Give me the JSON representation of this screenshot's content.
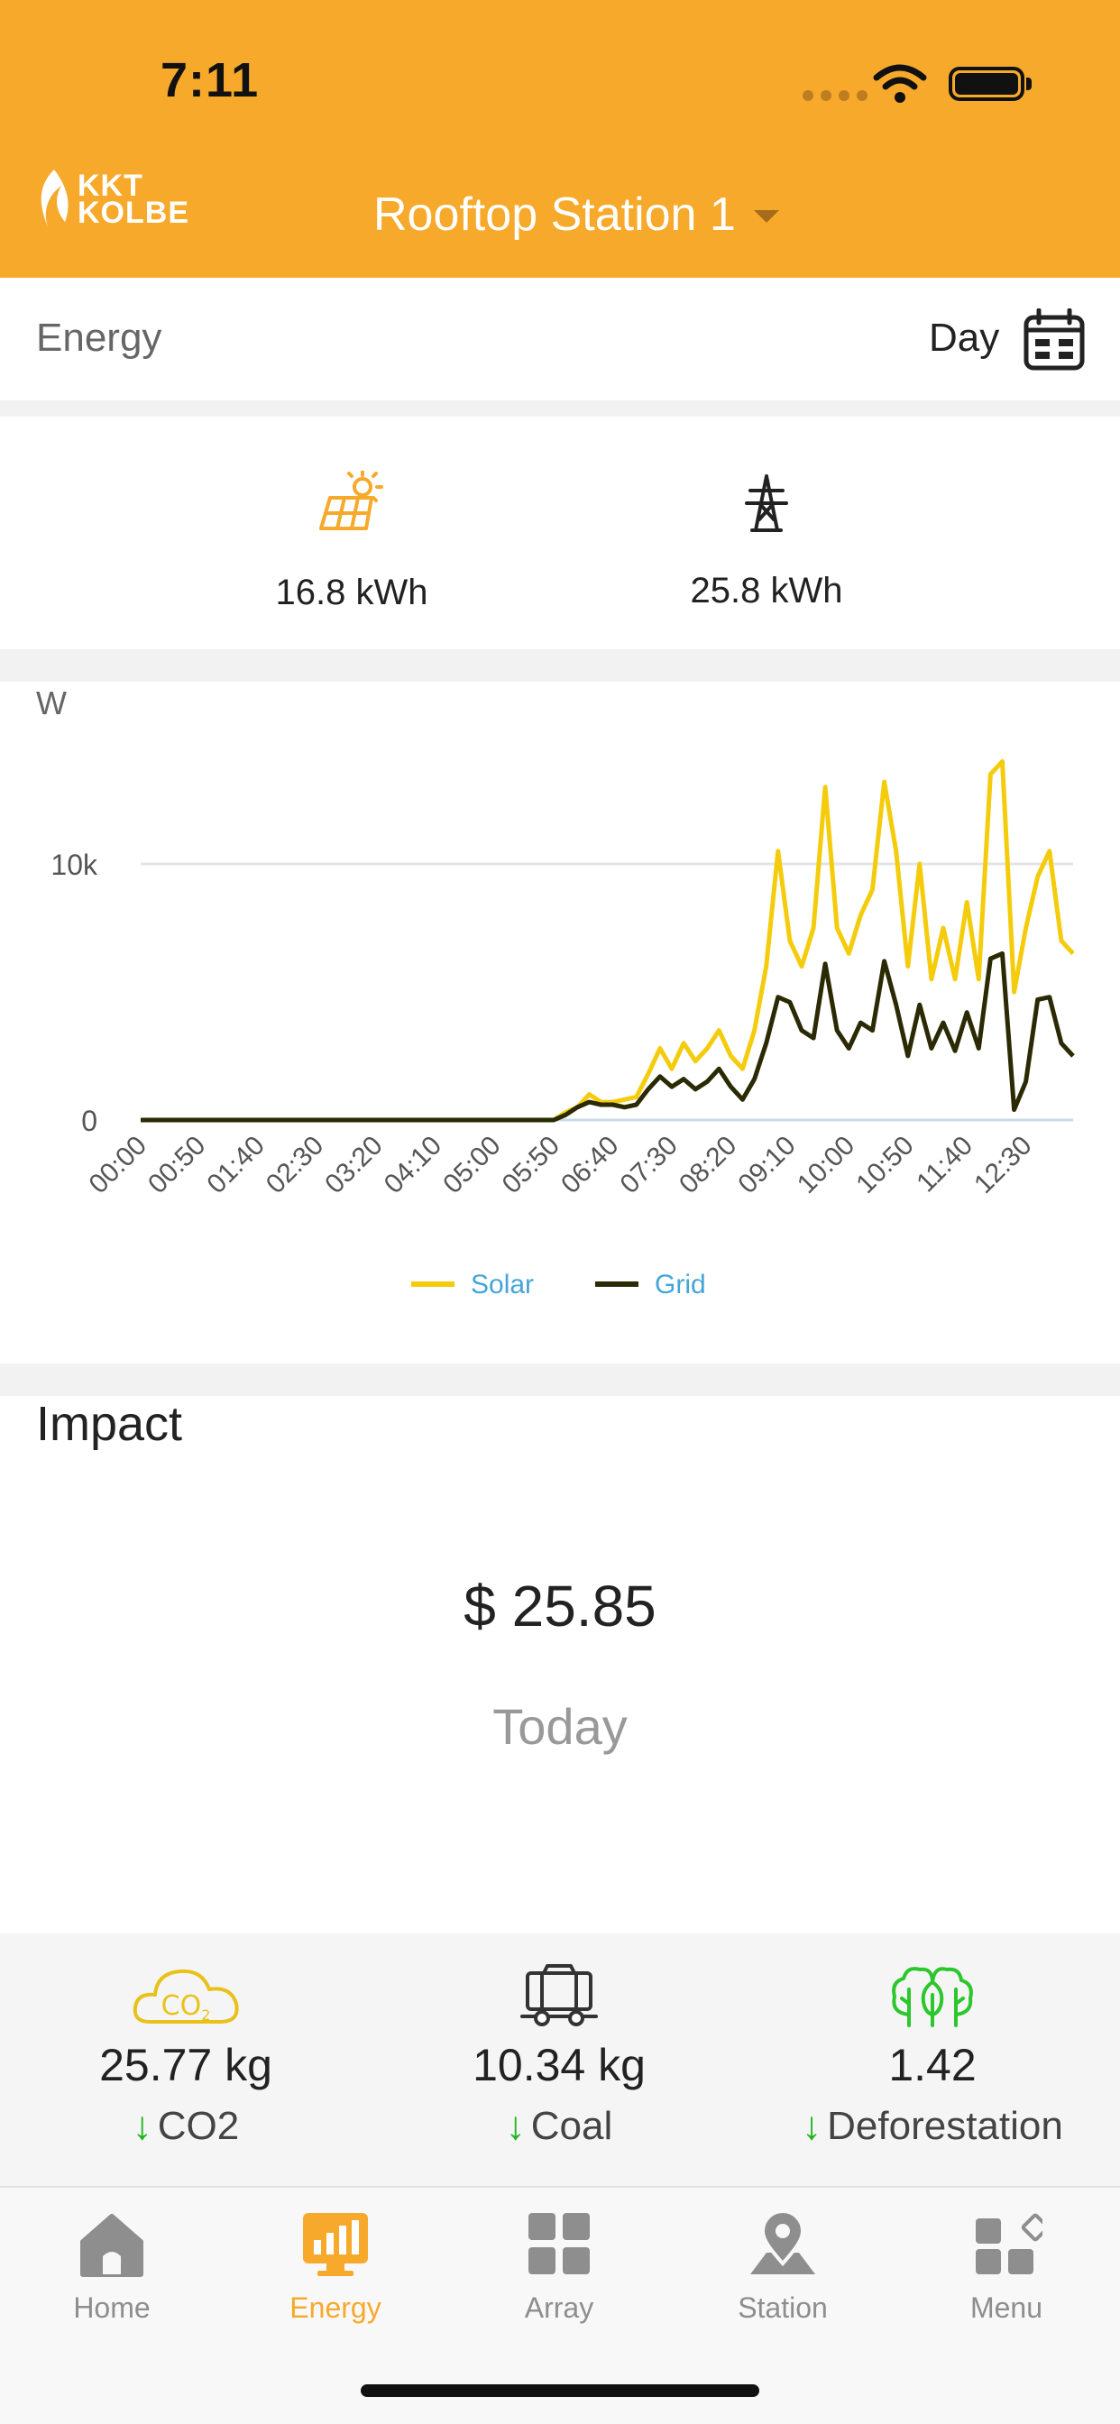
{
  "status_bar": {
    "time": "7:11"
  },
  "header": {
    "logo_line1": "KKT",
    "logo_line2": "KOLBE",
    "station_name": "Rooftop Station 1"
  },
  "energy_bar": {
    "label": "Energy",
    "period": "Day"
  },
  "summary": {
    "solar_value": "16.8 kWh",
    "grid_value": "25.8 kWh"
  },
  "chart_data": {
    "type": "line",
    "ylabel": "W",
    "y_ticks": [
      "0",
      "10k"
    ],
    "ylim": [
      0,
      15000
    ],
    "x_tick_labels": [
      "00:00",
      "00:50",
      "01:40",
      "02:30",
      "03:20",
      "04:10",
      "05:00",
      "05:50",
      "06:40",
      "07:30",
      "08:20",
      "09:10",
      "10:00",
      "10:50",
      "11:40",
      "12:30"
    ],
    "x_minutes_step": 10,
    "x_end_minutes": 790,
    "grid": true,
    "legend_position": "bottom",
    "series": [
      {
        "name": "Solar",
        "color": "#F5CC0C",
        "points": [
          [
            0,
            0
          ],
          [
            350,
            0
          ],
          [
            360,
            300
          ],
          [
            370,
            500
          ],
          [
            380,
            1000
          ],
          [
            390,
            700
          ],
          [
            400,
            700
          ],
          [
            410,
            800
          ],
          [
            420,
            900
          ],
          [
            430,
            1800
          ],
          [
            440,
            2800
          ],
          [
            450,
            2000
          ],
          [
            460,
            3000
          ],
          [
            470,
            2300
          ],
          [
            480,
            2800
          ],
          [
            490,
            3500
          ],
          [
            500,
            2500
          ],
          [
            510,
            2000
          ],
          [
            520,
            3500
          ],
          [
            530,
            6000
          ],
          [
            540,
            10500
          ],
          [
            550,
            7000
          ],
          [
            560,
            6000
          ],
          [
            570,
            7500
          ],
          [
            580,
            13000
          ],
          [
            590,
            7500
          ],
          [
            600,
            6500
          ],
          [
            610,
            8000
          ],
          [
            620,
            9000
          ],
          [
            630,
            13200
          ],
          [
            640,
            10500
          ],
          [
            650,
            6000
          ],
          [
            660,
            10000
          ],
          [
            670,
            5500
          ],
          [
            680,
            7500
          ],
          [
            690,
            5500
          ],
          [
            700,
            8500
          ],
          [
            710,
            5500
          ],
          [
            720,
            13500
          ],
          [
            730,
            14000
          ],
          [
            740,
            5000
          ],
          [
            750,
            7500
          ],
          [
            760,
            9500
          ],
          [
            770,
            10500
          ],
          [
            780,
            7000
          ],
          [
            790,
            6500
          ]
        ]
      },
      {
        "name": "Grid",
        "color": "#2B2A05",
        "points": [
          [
            0,
            0
          ],
          [
            350,
            0
          ],
          [
            360,
            200
          ],
          [
            370,
            500
          ],
          [
            380,
            700
          ],
          [
            390,
            600
          ],
          [
            400,
            600
          ],
          [
            410,
            500
          ],
          [
            420,
            600
          ],
          [
            430,
            1200
          ],
          [
            440,
            1700
          ],
          [
            450,
            1300
          ],
          [
            460,
            1600
          ],
          [
            470,
            1200
          ],
          [
            480,
            1500
          ],
          [
            490,
            2000
          ],
          [
            500,
            1300
          ],
          [
            510,
            800
          ],
          [
            520,
            1600
          ],
          [
            530,
            3000
          ],
          [
            540,
            4800
          ],
          [
            550,
            4600
          ],
          [
            560,
            3500
          ],
          [
            570,
            3200
          ],
          [
            580,
            6100
          ],
          [
            590,
            3500
          ],
          [
            600,
            2800
          ],
          [
            610,
            3800
          ],
          [
            620,
            3500
          ],
          [
            630,
            6200
          ],
          [
            640,
            4500
          ],
          [
            650,
            2500
          ],
          [
            660,
            4500
          ],
          [
            670,
            2800
          ],
          [
            680,
            3800
          ],
          [
            690,
            2700
          ],
          [
            700,
            4200
          ],
          [
            710,
            2800
          ],
          [
            720,
            6300
          ],
          [
            730,
            6500
          ],
          [
            740,
            400
          ],
          [
            750,
            1500
          ],
          [
            760,
            4700
          ],
          [
            770,
            4800
          ],
          [
            780,
            3000
          ],
          [
            790,
            2500
          ]
        ]
      }
    ]
  },
  "impact": {
    "title": "Impact",
    "money": "$ 25.85",
    "period": "Today"
  },
  "stats": [
    {
      "value": "25.77 kg",
      "label": "CO2",
      "icon": "co2-cloud-icon"
    },
    {
      "value": "10.34 kg",
      "label": "Coal",
      "icon": "coal-cart-icon"
    },
    {
      "value": "1.42",
      "label": "Deforestation",
      "icon": "trees-icon"
    }
  ],
  "tabs": [
    {
      "label": "Home",
      "icon": "home-icon",
      "active": false
    },
    {
      "label": "Energy",
      "icon": "energy-monitor-icon",
      "active": true
    },
    {
      "label": "Array",
      "icon": "grid-icon",
      "active": false
    },
    {
      "label": "Station",
      "icon": "map-pin-icon",
      "active": false
    },
    {
      "label": "Menu",
      "icon": "menu-apps-icon",
      "active": false
    }
  ],
  "colors": {
    "brand": "#F7A92B",
    "solar": "#F5CC0C",
    "grid": "#2B2A05",
    "legend_text": "#45A5D9",
    "positive_green": "#1DB51D"
  }
}
